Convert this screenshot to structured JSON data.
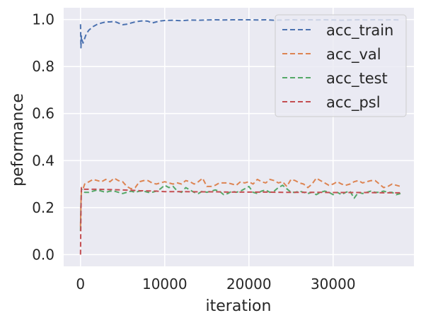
{
  "chart_data": {
    "type": "line",
    "title": "",
    "xlabel": "iteration",
    "ylabel": "peformance",
    "xlim": [
      -2000,
      39600
    ],
    "ylim": [
      -0.05,
      1.05
    ],
    "xticks": [
      0,
      10000,
      20000,
      30000
    ],
    "xtick_labels": [
      "0",
      "10000",
      "20000",
      "30000"
    ],
    "yticks": [
      0.0,
      0.2,
      0.4,
      0.6,
      0.8,
      1.0
    ],
    "ytick_labels": [
      "0.0",
      "0.2",
      "0.4",
      "0.6",
      "0.8",
      "1.0"
    ],
    "grid": true,
    "legend_position": "top-right",
    "series": [
      {
        "name": "acc_train",
        "color": "#4c72b0",
        "x": [
          0,
          50,
          100,
          200,
          300,
          500,
          700,
          1000,
          1500,
          2000,
          2500,
          3000,
          3500,
          4000,
          4500,
          5000,
          5500,
          6000,
          6500,
          7000,
          7500,
          8000,
          8500,
          9000,
          9500,
          10000,
          11000,
          12000,
          13000,
          14000,
          15000,
          16000,
          17000,
          18000,
          19000,
          20000,
          21000,
          22000,
          23000,
          24000,
          25000,
          26000,
          27000,
          28000,
          29000,
          30000,
          31000,
          32000,
          33000,
          34000,
          35000,
          36000,
          37000,
          38000
        ],
        "y": [
          0.98,
          0.88,
          0.93,
          0.91,
          0.9,
          0.92,
          0.94,
          0.955,
          0.97,
          0.98,
          0.985,
          0.99,
          0.99,
          0.992,
          0.985,
          0.978,
          0.98,
          0.985,
          0.99,
          0.993,
          0.995,
          0.993,
          0.985,
          0.99,
          0.994,
          0.996,
          0.997,
          0.995,
          0.998,
          0.997,
          0.998,
          0.999,
          0.998,
          0.999,
          0.999,
          0.999,
          0.998,
          0.999,
          0.997,
          0.998,
          0.999,
          0.998,
          0.999,
          0.998,
          0.999,
          0.998,
          0.997,
          0.998,
          0.999,
          0.998,
          0.999,
          0.998,
          0.999,
          0.998
        ]
      },
      {
        "name": "acc_val",
        "color": "#dd8452",
        "x": [
          0,
          50,
          100,
          300,
          500,
          1000,
          1500,
          2000,
          2500,
          3000,
          3500,
          4000,
          4500,
          5000,
          5500,
          6000,
          6500,
          7000,
          7500,
          8000,
          8500,
          9000,
          9500,
          10000,
          10500,
          11000,
          11500,
          12000,
          12500,
          13000,
          13500,
          14000,
          14500,
          15000,
          15500,
          16000,
          16500,
          17000,
          17500,
          18000,
          18500,
          19000,
          19500,
          20000,
          20500,
          21000,
          21500,
          22000,
          22500,
          23000,
          23500,
          24000,
          24500,
          25000,
          25500,
          26000,
          26500,
          27000,
          27500,
          28000,
          28500,
          29000,
          29500,
          30000,
          30500,
          31000,
          31500,
          32000,
          32500,
          33000,
          33500,
          34000,
          34500,
          35000,
          35500,
          36000,
          36500,
          37000,
          37500,
          38000
        ],
        "y": [
          0.12,
          0.22,
          0.27,
          0.28,
          0.3,
          0.31,
          0.32,
          0.315,
          0.31,
          0.32,
          0.31,
          0.325,
          0.315,
          0.31,
          0.29,
          0.28,
          0.285,
          0.31,
          0.315,
          0.315,
          0.305,
          0.3,
          0.305,
          0.31,
          0.305,
          0.3,
          0.305,
          0.3,
          0.315,
          0.31,
          0.3,
          0.31,
          0.325,
          0.29,
          0.29,
          0.295,
          0.305,
          0.305,
          0.305,
          0.3,
          0.295,
          0.31,
          0.305,
          0.31,
          0.3,
          0.32,
          0.31,
          0.305,
          0.32,
          0.315,
          0.305,
          0.31,
          0.29,
          0.32,
          0.315,
          0.305,
          0.3,
          0.285,
          0.3,
          0.325,
          0.315,
          0.305,
          0.295,
          0.3,
          0.31,
          0.3,
          0.295,
          0.3,
          0.31,
          0.315,
          0.305,
          0.31,
          0.315,
          0.315,
          0.3,
          0.285,
          0.29,
          0.3,
          0.295,
          0.29
        ]
      },
      {
        "name": "acc_test",
        "color": "#55a868",
        "x": [
          0,
          50,
          100,
          300,
          500,
          1000,
          1500,
          2000,
          2500,
          3000,
          3500,
          4000,
          4500,
          5000,
          5500,
          6000,
          6500,
          7000,
          7500,
          8000,
          8500,
          9000,
          9500,
          10000,
          10500,
          11000,
          11500,
          12000,
          12500,
          13000,
          13500,
          14000,
          14500,
          15000,
          15500,
          16000,
          16500,
          17000,
          17500,
          18000,
          18500,
          19000,
          19500,
          20000,
          20500,
          21000,
          21500,
          22000,
          22500,
          23000,
          23500,
          24000,
          24500,
          25000,
          25500,
          26000,
          26500,
          27000,
          27500,
          28000,
          28500,
          29000,
          29500,
          30000,
          30500,
          31000,
          31500,
          32000,
          32500,
          33000,
          33500,
          34000,
          34500,
          35000,
          35500,
          36000,
          36500,
          37000,
          37500,
          38000
        ],
        "y": [
          0.1,
          0.22,
          0.28,
          0.27,
          0.265,
          0.265,
          0.27,
          0.275,
          0.27,
          0.265,
          0.27,
          0.27,
          0.265,
          0.26,
          0.265,
          0.27,
          0.265,
          0.27,
          0.27,
          0.265,
          0.265,
          0.27,
          0.28,
          0.295,
          0.285,
          0.29,
          0.27,
          0.265,
          0.285,
          0.275,
          0.265,
          0.26,
          0.27,
          0.265,
          0.27,
          0.275,
          0.27,
          0.255,
          0.26,
          0.27,
          0.265,
          0.27,
          0.28,
          0.29,
          0.265,
          0.26,
          0.27,
          0.275,
          0.265,
          0.27,
          0.285,
          0.295,
          0.28,
          0.265,
          0.265,
          0.27,
          0.265,
          0.26,
          0.265,
          0.255,
          0.265,
          0.27,
          0.265,
          0.255,
          0.265,
          0.255,
          0.265,
          0.27,
          0.24,
          0.265,
          0.26,
          0.265,
          0.27,
          0.265,
          0.265,
          0.27,
          0.265,
          0.265,
          0.255,
          0.26
        ]
      },
      {
        "name": "acc_psl",
        "color": "#c44e52",
        "x": [
          0,
          50,
          100,
          300,
          500,
          1000,
          2000,
          3000,
          4000,
          5000,
          6000,
          7000,
          8000,
          9000,
          10000,
          12000,
          14000,
          16000,
          18000,
          20000,
          22000,
          24000,
          26000,
          28000,
          30000,
          32000,
          34000,
          36000,
          38000
        ],
        "y": [
          0.0,
          0.18,
          0.285,
          0.28,
          0.278,
          0.278,
          0.278,
          0.277,
          0.276,
          0.275,
          0.274,
          0.272,
          0.271,
          0.27,
          0.268,
          0.268,
          0.267,
          0.267,
          0.266,
          0.266,
          0.266,
          0.265,
          0.265,
          0.265,
          0.264,
          0.264,
          0.264,
          0.263,
          0.263
        ]
      }
    ]
  }
}
